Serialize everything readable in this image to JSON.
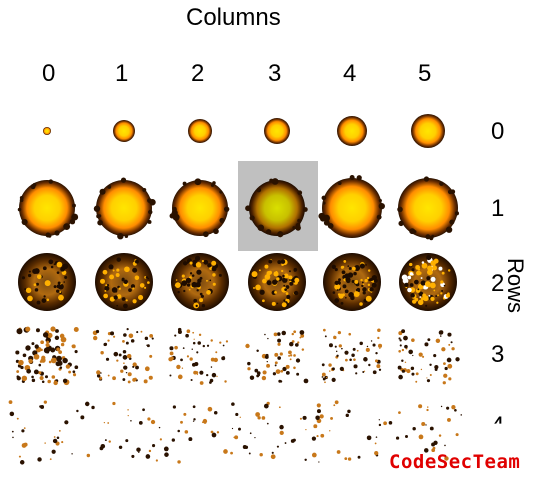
{
  "titles": {
    "columns": "Columns",
    "rows": "Rows"
  },
  "column_labels": [
    "0",
    "1",
    "2",
    "3",
    "4",
    "5"
  ],
  "row_labels": [
    "0",
    "1",
    "2",
    "3",
    "4"
  ],
  "watermark": "CodeSecTeam",
  "selected_cell": {
    "row": 1,
    "column": 3
  },
  "colors": {
    "core": "#ffe600",
    "glow": "#ff8c00",
    "shell": "#2a1200",
    "selection": "#c0c0c0",
    "watermark": "#e00000"
  }
}
